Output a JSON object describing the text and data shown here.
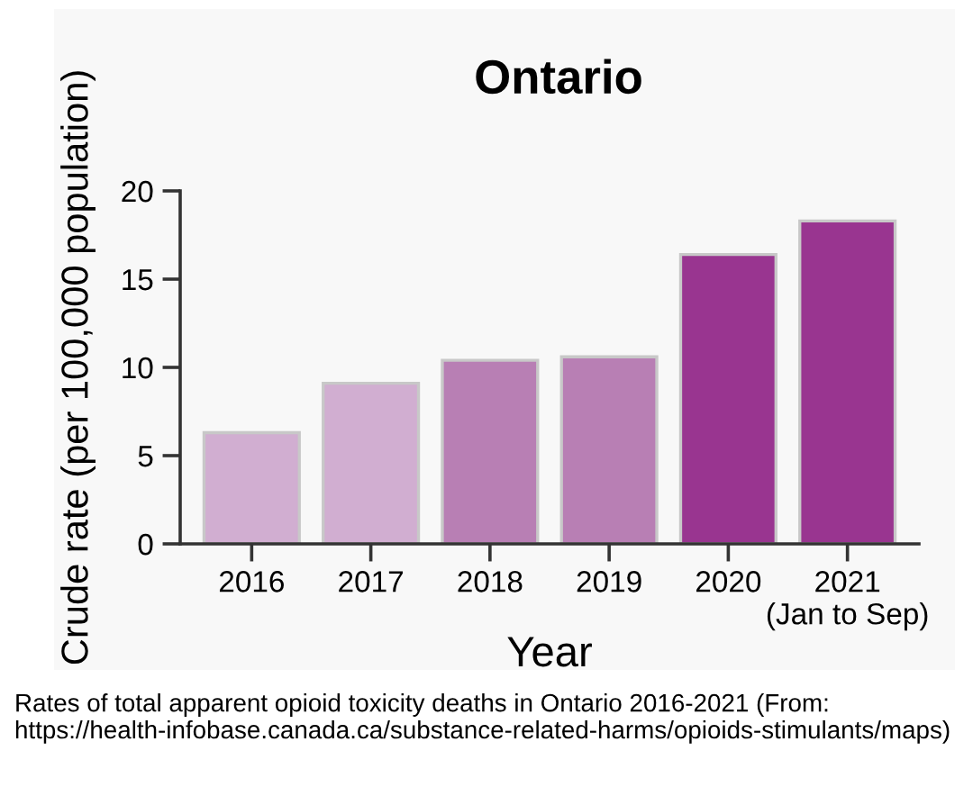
{
  "chart_data": {
    "type": "bar",
    "title": "Ontario",
    "xlabel": "Year",
    "ylabel": "Crude rate (per 100,000 population)",
    "categories": [
      "2016",
      "2017",
      "2018",
      "2019",
      "2020",
      "2021\n(Jan to Sep)"
    ],
    "values": [
      6.3,
      9.1,
      10.4,
      10.6,
      16.4,
      18.3
    ],
    "colors": [
      "#d1aed1",
      "#d1aed1",
      "#b87fb4",
      "#b87fb4",
      "#993590",
      "#993590"
    ],
    "ylim": [
      0,
      20
    ],
    "yticks": [
      0,
      5,
      10,
      15,
      20
    ],
    "grid": false,
    "legend": false,
    "annotations": [
      "Rates of total apparent opioid toxicity deaths in Ontario 2016-2021 (From: https://health-infobase.canada.ca/substance-related-harms/opioids-stimulants/maps)"
    ]
  }
}
